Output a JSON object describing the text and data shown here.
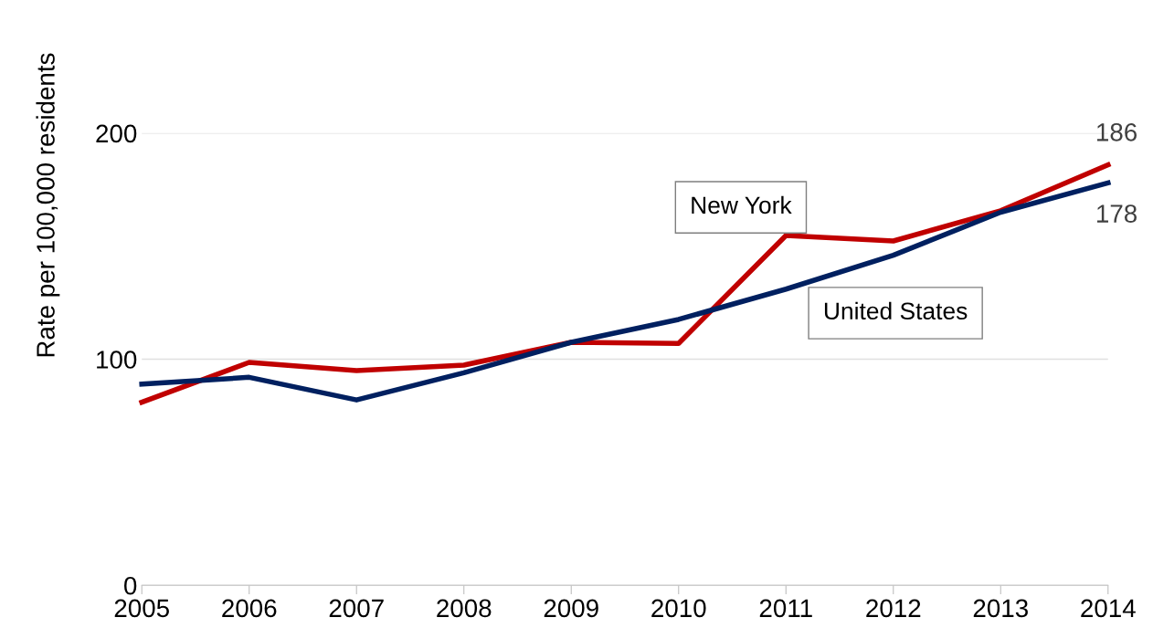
{
  "chart_data": {
    "type": "line",
    "ylabel": "Rate per 100,000 residents",
    "x": [
      2005,
      2006,
      2007,
      2008,
      2009,
      2010,
      2011,
      2012,
      2013,
      2014
    ],
    "xlim": [
      2005,
      2014
    ],
    "xticks": [
      2005,
      2006,
      2007,
      2008,
      2009,
      2010,
      2011,
      2012,
      2013,
      2014
    ],
    "ylim": [
      0,
      200
    ],
    "yticks": [
      0,
      100,
      200
    ],
    "grid": "y",
    "legend": false,
    "marker": "none",
    "line_style": "solid",
    "series": [
      {
        "name": "New York",
        "color": "#c00000",
        "values": [
          81,
          98.6,
          95,
          97.4,
          107.5,
          107,
          154.7,
          152.3,
          165.7,
          186
        ],
        "value_labels": [
          null,
          null,
          null,
          null,
          null,
          null,
          null,
          null,
          null,
          "186"
        ]
      },
      {
        "name": "United States",
        "color": "#002060",
        "values": [
          89,
          92,
          82,
          94,
          107.5,
          117.6,
          131,
          146,
          165,
          178
        ],
        "value_labels": [
          null,
          null,
          null,
          null,
          null,
          null,
          null,
          null,
          null,
          "178"
        ]
      }
    ]
  }
}
